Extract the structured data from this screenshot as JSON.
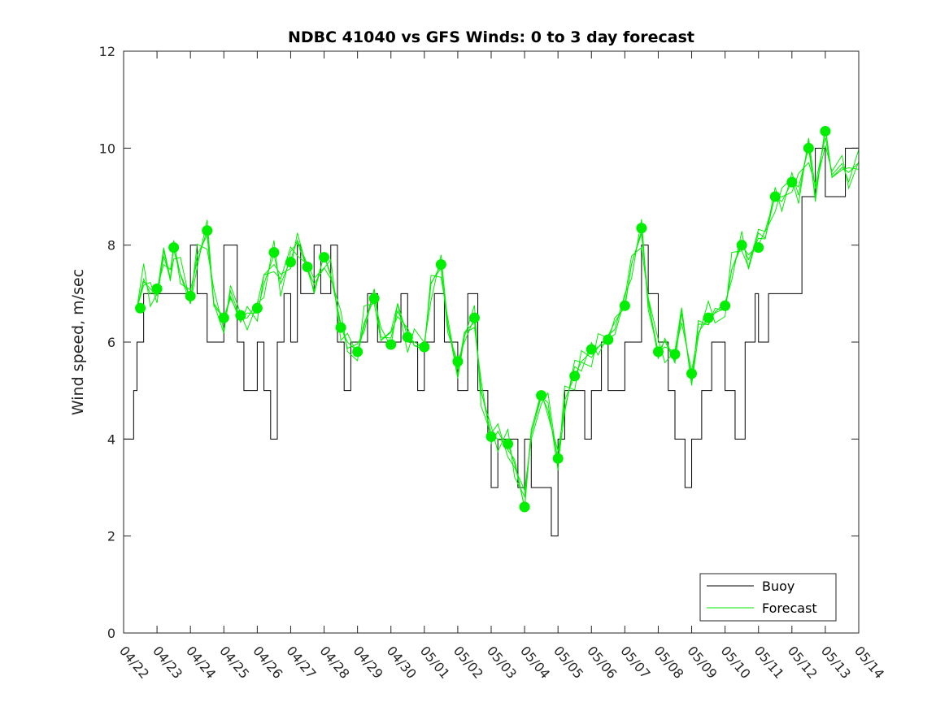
{
  "chart_data": {
    "type": "line",
    "title": "NDBC 41040 vs GFS Winds: 0 to 3 day forecast",
    "ylabel": "Wind speed, m/sec",
    "xlabel": "",
    "ylim": [
      0,
      12
    ],
    "yticks": [
      0,
      2,
      4,
      6,
      8,
      10,
      12
    ],
    "xlim": [
      0,
      22
    ],
    "xtick_labels": [
      "04/22",
      "04/23",
      "04/24",
      "04/25",
      "04/26",
      "04/27",
      "04/28",
      "04/29",
      "04/30",
      "05/01",
      "05/02",
      "05/03",
      "05/04",
      "05/05",
      "05/06",
      "05/07",
      "05/08",
      "05/09",
      "05/10",
      "05/11",
      "05/12",
      "05/13",
      "05/14"
    ],
    "legend": {
      "placement": "bottom-right",
      "entries": [
        {
          "name": "Buoy",
          "color": "#000000"
        },
        {
          "name": "Forecast",
          "color": "#00ee00"
        }
      ]
    },
    "colors": {
      "buoy": "#000000",
      "forecast": "#00ee00",
      "marker": "#00ee00",
      "axis": "#262626"
    },
    "series": [
      {
        "name": "Buoy",
        "type": "step-line",
        "x": [
          0,
          0.3,
          0.4,
          0.6,
          1.0,
          1.5,
          2.0,
          2.2,
          2.5,
          3.0,
          3.4,
          3.6,
          3.8,
          4.0,
          4.2,
          4.4,
          4.6,
          4.8,
          5.0,
          5.2,
          5.3,
          5.5,
          5.7,
          5.9,
          6.0,
          6.2,
          6.4,
          6.6,
          6.8,
          7.0,
          7.3,
          7.6,
          8.0,
          8.3,
          8.5,
          8.8,
          9.0,
          9.3,
          9.6,
          10.0,
          10.3,
          10.6,
          10.9,
          11.0,
          11.2,
          11.5,
          11.8,
          12.0,
          12.2,
          12.5,
          12.8,
          13.0,
          13.2,
          13.5,
          13.8,
          14.0,
          14.3,
          14.5,
          14.7,
          15.0,
          15.3,
          15.5,
          15.7,
          16.0,
          16.3,
          16.5,
          16.8,
          17.0,
          17.3,
          17.6,
          18.0,
          18.3,
          18.6,
          18.9,
          19.0,
          19.3,
          19.6,
          20.0,
          20.3,
          20.5,
          20.7,
          21.0,
          21.3,
          21.6,
          22.0
        ],
        "y": [
          4,
          5,
          6,
          7,
          7,
          7,
          8,
          7,
          6,
          8,
          6,
          5,
          5,
          6,
          5,
          4,
          6,
          7,
          6,
          8,
          7,
          7,
          8,
          7,
          7,
          8,
          6,
          5,
          6,
          6,
          7,
          6,
          6,
          7,
          6,
          5,
          6,
          7,
          6,
          5,
          7,
          5,
          4,
          3,
          4,
          4,
          3,
          4,
          3,
          3,
          2,
          4,
          5,
          5,
          4,
          5,
          6,
          5,
          5,
          6,
          6,
          8,
          7,
          6,
          5,
          4,
          3,
          4,
          5,
          6,
          5,
          4,
          6,
          7,
          6,
          7,
          7,
          7,
          9,
          9,
          10,
          9,
          9,
          10,
          10
        ]
      },
      {
        "name": "Forecast",
        "type": "ensemble-lines",
        "x": [
          0.4,
          0.6,
          0.8,
          1.0,
          1.2,
          1.4,
          1.5,
          1.7,
          2.0,
          2.2,
          2.5,
          2.7,
          3.0,
          3.2,
          3.5,
          3.7,
          4.0,
          4.2,
          4.5,
          4.7,
          5.0,
          5.2,
          5.5,
          5.7,
          6.0,
          6.2,
          6.5,
          6.7,
          7.0,
          7.2,
          7.5,
          7.7,
          8.0,
          8.2,
          8.5,
          8.7,
          9.0,
          9.2,
          9.5,
          9.7,
          10.0,
          10.2,
          10.5,
          10.7,
          11.0,
          11.2,
          11.5,
          11.7,
          12.0,
          12.2,
          12.5,
          12.7,
          13.0,
          13.2,
          13.5,
          13.7,
          14.0,
          14.2,
          14.5,
          14.7,
          15.0,
          15.2,
          15.5,
          15.7,
          16.0,
          16.2,
          16.5,
          16.7,
          17.0,
          17.2,
          17.5,
          17.7,
          18.0,
          18.2,
          18.5,
          18.7,
          19.0,
          19.2,
          19.5,
          19.7,
          20.0,
          20.2,
          20.5,
          20.7,
          21.0,
          21.2,
          21.5,
          21.7,
          22.0
        ],
        "y": [
          6.7,
          7.3,
          7.0,
          7.1,
          7.6,
          7.5,
          7.9,
          7.4,
          6.9,
          7.8,
          8.2,
          6.8,
          6.5,
          6.9,
          6.5,
          6.6,
          6.6,
          7.2,
          7.8,
          7.2,
          7.7,
          8.1,
          7.6,
          7.0,
          7.8,
          7.4,
          6.3,
          6.0,
          5.8,
          6.4,
          6.9,
          6.3,
          5.9,
          6.8,
          6.1,
          6.0,
          5.9,
          7.2,
          7.6,
          6.2,
          5.6,
          6.0,
          6.5,
          5.0,
          4.1,
          4.0,
          3.9,
          3.5,
          2.6,
          4.2,
          4.9,
          4.6,
          3.6,
          4.8,
          5.3,
          5.6,
          5.8,
          5.9,
          6.0,
          6.5,
          6.7,
          7.6,
          8.3,
          6.8,
          5.8,
          5.9,
          5.8,
          6.4,
          5.4,
          6.2,
          6.5,
          6.6,
          6.7,
          7.5,
          8.0,
          7.8,
          8.0,
          8.3,
          9.0,
          8.9,
          9.3,
          9.2,
          10.0,
          9.0,
          10.4,
          9.4,
          9.6,
          9.5,
          9.7
        ]
      },
      {
        "name": "Forecast analysis points",
        "type": "markers",
        "x": [
          0.5,
          1.0,
          1.5,
          2.0,
          2.5,
          3.0,
          3.5,
          4.0,
          4.5,
          5.0,
          5.5,
          6.0,
          6.5,
          7.0,
          7.5,
          8.0,
          8.5,
          9.0,
          9.5,
          10.0,
          10.5,
          11.0,
          11.5,
          12.0,
          12.5,
          13.0,
          13.5,
          14.0,
          14.5,
          15.0,
          15.5,
          16.0,
          16.5,
          17.0,
          17.5,
          18.0,
          18.5,
          19.0,
          19.5,
          20.0,
          20.5,
          21.0
        ],
        "y": [
          6.7,
          7.1,
          7.95,
          6.95,
          8.3,
          6.5,
          6.55,
          6.7,
          7.85,
          7.65,
          7.55,
          7.75,
          6.3,
          5.8,
          6.9,
          5.95,
          6.1,
          5.9,
          7.6,
          5.6,
          6.5,
          4.05,
          3.9,
          2.6,
          4.9,
          3.6,
          5.3,
          5.85,
          6.05,
          6.75,
          8.35,
          5.8,
          5.75,
          5.35,
          6.5,
          6.75,
          8.0,
          7.95,
          9.0,
          9.3,
          10.0,
          10.35
        ]
      }
    ]
  }
}
